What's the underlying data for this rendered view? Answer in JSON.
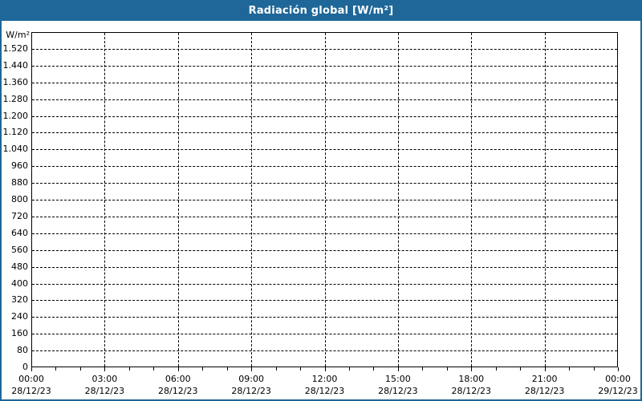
{
  "window": {
    "title": "Radiación global [W/m²]"
  },
  "colors": {
    "titlebar_bg": "#1f6798",
    "titlebar_text": "#ffffff",
    "frame_border": "#1f6798",
    "canvas_bg": "#ffffff",
    "plot_bg": "#ffffff",
    "axis_line": "#000000",
    "grid_line": "#000000",
    "label_text": "#000000"
  },
  "chart_data": {
    "type": "line",
    "title": "Radiación global [W/m²]",
    "ylabel": "W/m²",
    "xlabel": "",
    "ylim": [
      0,
      1600
    ],
    "ytick_step": 80,
    "ytick_labels_top_to_bottom": [
      "1.520",
      "1.440",
      "1.360",
      "1.280",
      "1.200",
      "1.120",
      "1.040",
      "960",
      "880",
      "800",
      "720",
      "640",
      "560",
      "480",
      "400",
      "320",
      "240",
      "160",
      "80",
      "0"
    ],
    "xlim_hours": [
      0,
      24
    ],
    "xtick_interval_hours": 3,
    "xminor_tick_interval_hours": 1,
    "xticks": [
      {
        "time": "00:00",
        "date": "28/12/23"
      },
      {
        "time": "03:00",
        "date": "28/12/23"
      },
      {
        "time": "06:00",
        "date": "28/12/23"
      },
      {
        "time": "09:00",
        "date": "28/12/23"
      },
      {
        "time": "12:00",
        "date": "28/12/23"
      },
      {
        "time": "15:00",
        "date": "28/12/23"
      },
      {
        "time": "18:00",
        "date": "28/12/23"
      },
      {
        "time": "21:00",
        "date": "28/12/23"
      },
      {
        "time": "00:00",
        "date": "29/12/23"
      }
    ],
    "grid": "dashed",
    "legend": "none",
    "series": []
  }
}
